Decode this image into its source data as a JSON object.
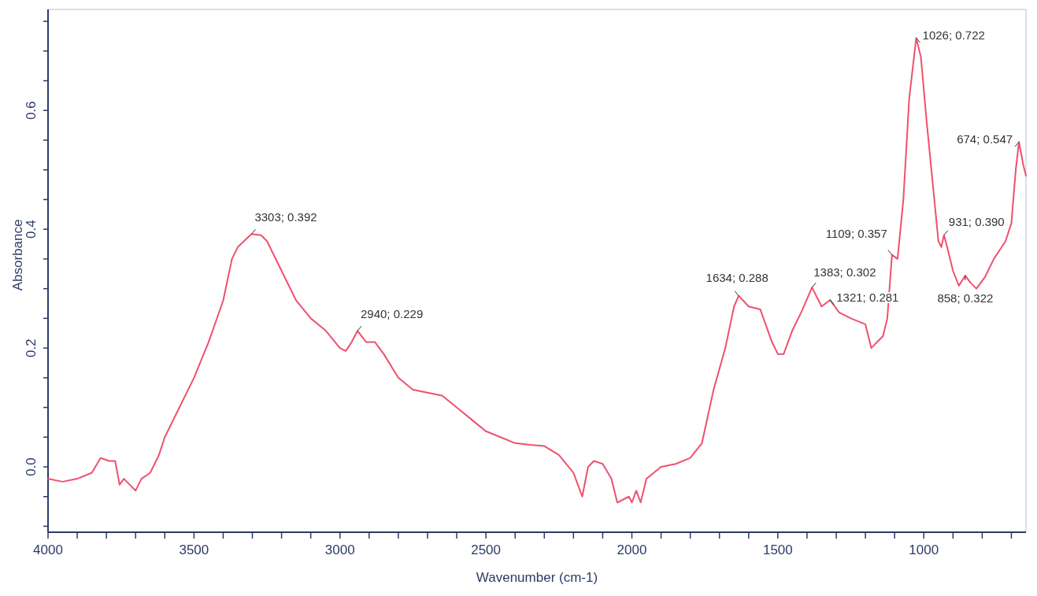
{
  "chart_data": {
    "type": "line",
    "xlabel": "Wavenumber (cm-1)",
    "ylabel": "Absorbance",
    "xlim": [
      4000,
      650
    ],
    "ylim": [
      -0.11,
      0.77
    ],
    "xticks": [
      4000,
      {
        "value": 3900,
        "label": null
      },
      {
        "value": 3800,
        "label": null
      },
      {
        "value": 3700,
        "label": null
      },
      {
        "value": 3600,
        "label": null
      },
      3500,
      {
        "value": 3400,
        "label": null
      },
      {
        "value": 3300,
        "label": null
      },
      {
        "value": 3200,
        "label": null
      },
      {
        "value": 3100,
        "label": null
      },
      3000,
      {
        "value": 2900,
        "label": null
      },
      {
        "value": 2800,
        "label": null
      },
      {
        "value": 2700,
        "label": null
      },
      {
        "value": 2600,
        "label": null
      },
      2500,
      {
        "value": 2400,
        "label": null
      },
      {
        "value": 2300,
        "label": null
      },
      {
        "value": 2200,
        "label": null
      },
      {
        "value": 2100,
        "label": null
      },
      2000,
      {
        "value": 1900,
        "label": null
      },
      {
        "value": 1800,
        "label": null
      },
      {
        "value": 1700,
        "label": null
      },
      {
        "value": 1600,
        "label": null
      },
      1500,
      {
        "value": 1400,
        "label": null
      },
      {
        "value": 1300,
        "label": null
      },
      {
        "value": 1200,
        "label": null
      },
      {
        "value": 1100,
        "label": null
      },
      1000,
      {
        "value": 900,
        "label": null
      },
      {
        "value": 800,
        "label": null
      },
      {
        "value": 700,
        "label": null
      }
    ],
    "yticks": [
      {
        "value": -0.1,
        "label": null
      },
      {
        "value": -0.05,
        "label": null
      },
      {
        "value": 0,
        "label": "0.0"
      },
      {
        "value": 0.05,
        "label": null
      },
      {
        "value": 0.1,
        "label": null
      },
      {
        "value": 0.15,
        "label": null
      },
      0.2,
      {
        "value": 0.25,
        "label": null
      },
      {
        "value": 0.3,
        "label": null
      },
      {
        "value": 0.35,
        "label": null
      },
      0.4,
      {
        "value": 0.45,
        "label": null
      },
      {
        "value": 0.5,
        "label": null
      },
      {
        "value": 0.55,
        "label": null
      },
      0.6,
      {
        "value": 0.65,
        "label": null
      },
      {
        "value": 0.7,
        "label": null
      },
      {
        "value": 0.75,
        "label": null
      }
    ],
    "grid": false,
    "marker": "none",
    "line_style": "solid",
    "x": [
      4000,
      3950,
      3900,
      3850,
      3820,
      3790,
      3770,
      3755,
      3740,
      3720,
      3700,
      3680,
      3650,
      3620,
      3600,
      3550,
      3500,
      3450,
      3400,
      3370,
      3350,
      3303,
      3270,
      3250,
      3200,
      3150,
      3100,
      3050,
      3000,
      2980,
      2960,
      2940,
      2910,
      2880,
      2850,
      2800,
      2750,
      2700,
      2650,
      2600,
      2550,
      2500,
      2450,
      2400,
      2350,
      2300,
      2250,
      2200,
      2170,
      2150,
      2130,
      2100,
      2070,
      2050,
      2030,
      2010,
      2000,
      1985,
      1970,
      1950,
      1900,
      1850,
      1800,
      1760,
      1720,
      1680,
      1650,
      1634,
      1600,
      1560,
      1520,
      1500,
      1480,
      1450,
      1420,
      1383,
      1350,
      1321,
      1290,
      1250,
      1200,
      1180,
      1160,
      1140,
      1125,
      1109,
      1090,
      1070,
      1050,
      1026,
      1010,
      990,
      970,
      950,
      940,
      931,
      920,
      900,
      880,
      858,
      840,
      820,
      790,
      760,
      720,
      700,
      685,
      674,
      660,
      650
    ],
    "series": [
      {
        "color": "#f0506e",
        "values": [
          -0.02,
          -0.025,
          -0.02,
          -0.01,
          0.015,
          0.01,
          0.01,
          -0.03,
          -0.02,
          -0.03,
          -0.04,
          -0.02,
          -0.01,
          0.02,
          0.05,
          0.1,
          0.15,
          0.21,
          0.28,
          0.35,
          0.37,
          0.392,
          0.39,
          0.38,
          0.33,
          0.28,
          0.25,
          0.23,
          0.2,
          0.195,
          0.21,
          0.229,
          0.21,
          0.21,
          0.19,
          0.15,
          0.13,
          0.125,
          0.12,
          0.1,
          0.08,
          0.06,
          0.05,
          0.04,
          0.037,
          0.035,
          0.02,
          -0.01,
          -0.05,
          0,
          0.01,
          0.005,
          -0.02,
          -0.06,
          -0.055,
          -0.05,
          -0.06,
          -0.04,
          -0.06,
          -0.02,
          0,
          0.005,
          0.015,
          0.04,
          0.13,
          0.2,
          0.27,
          0.288,
          0.27,
          0.265,
          0.21,
          0.19,
          0.19,
          0.23,
          0.26,
          0.302,
          0.27,
          0.281,
          0.26,
          0.25,
          0.24,
          0.2,
          0.21,
          0.22,
          0.25,
          0.357,
          0.35,
          0.45,
          0.62,
          0.722,
          0.69,
          0.58,
          0.48,
          0.38,
          0.37,
          0.39,
          0.37,
          0.33,
          0.305,
          0.322,
          0.31,
          0.3,
          0.32,
          0.35,
          0.38,
          0.41,
          0.5,
          0.547,
          0.51,
          0.49
        ]
      }
    ],
    "annotations": [
      {
        "text": "3303; 0.392",
        "x": 3303,
        "y": 0.392
      },
      {
        "text": "2940; 0.229",
        "x": 2940,
        "y": 0.229
      },
      {
        "text": "1634; 0.288",
        "x": 1634,
        "y": 0.288
      },
      {
        "text": "1383; 0.302",
        "x": 1383,
        "y": 0.302
      },
      {
        "text": "1321; 0.281",
        "x": 1321,
        "y": 0.281
      },
      {
        "text": "1109; 0.357",
        "x": 1109,
        "y": 0.357
      },
      {
        "text": "1026; 0.722",
        "x": 1026,
        "y": 0.722
      },
      {
        "text": "931; 0.390",
        "x": 931,
        "y": 0.39
      },
      {
        "text": "858; 0.322",
        "x": 858,
        "y": 0.322
      },
      {
        "text": "674; 0.547",
        "x": 674,
        "y": 0.547
      }
    ]
  }
}
